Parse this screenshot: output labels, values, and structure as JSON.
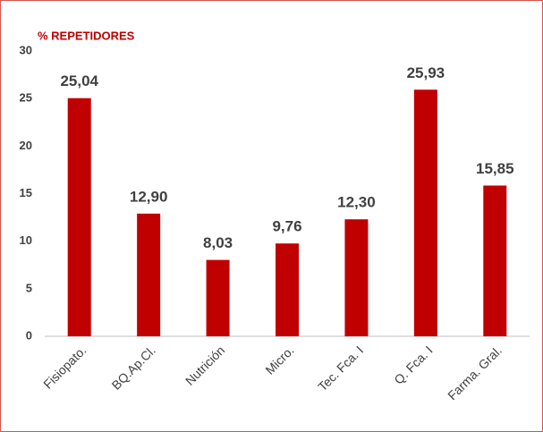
{
  "chart_data": {
    "type": "bar",
    "title": "% REPETIDORES",
    "categories": [
      "Fisiopato.",
      "BQ.Ap.Cl.",
      "Nutrición",
      "Micro.",
      "Tec. Fca. I",
      "Q. Fca. I",
      "Farma. Gral."
    ],
    "values": [
      25.04,
      12.9,
      8.03,
      9.76,
      12.3,
      25.93,
      15.85
    ],
    "value_labels": [
      "25,04",
      "12,90",
      "8,03",
      "9,76",
      "12,30",
      "25,93",
      "15,85"
    ],
    "color": "#c00000",
    "ylim": [
      0,
      30
    ],
    "yticks": [
      0,
      5,
      10,
      15,
      20,
      25,
      30
    ],
    "grid": false
  }
}
